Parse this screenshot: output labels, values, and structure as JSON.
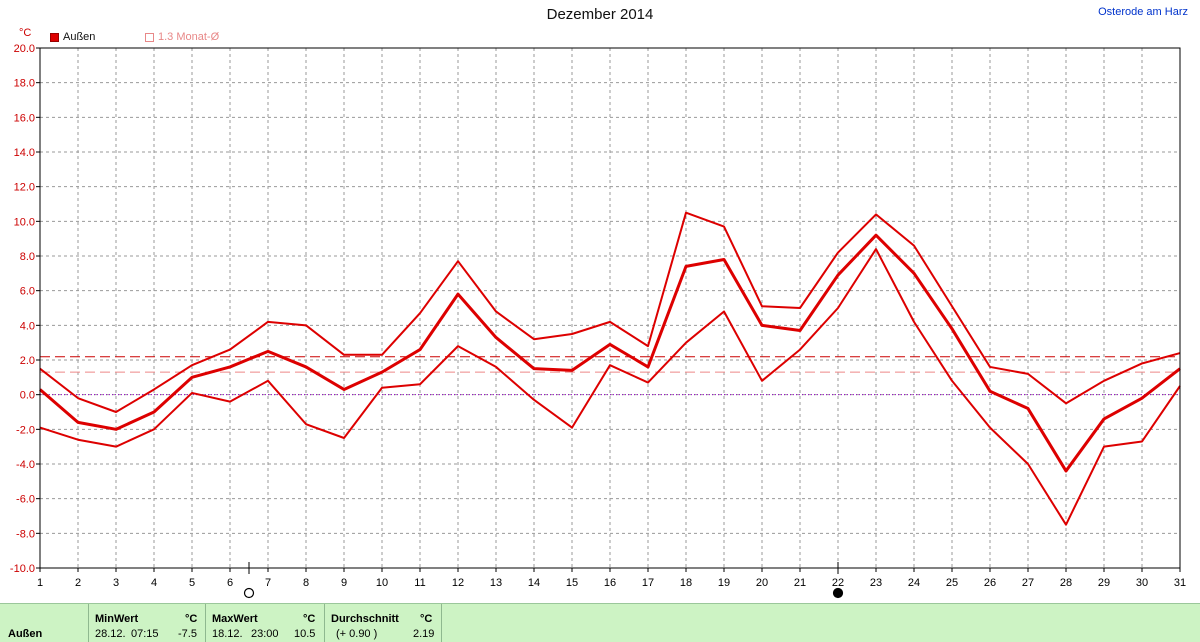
{
  "title": "Dezember 2014",
  "location": "Osterode am Harz",
  "unit": "°C",
  "legend": [
    {
      "label": "Außen",
      "color": "#dd0000"
    },
    {
      "label": "1.3 Monat-Ø",
      "color": "#e88888"
    }
  ],
  "chart_data": {
    "type": "line",
    "x": [
      1,
      2,
      3,
      4,
      5,
      6,
      7,
      8,
      9,
      10,
      11,
      12,
      13,
      14,
      15,
      16,
      17,
      18,
      19,
      20,
      21,
      22,
      23,
      24,
      25,
      26,
      27,
      28,
      29,
      30,
      31
    ],
    "xlim": [
      1,
      31
    ],
    "ylim": [
      -10,
      20
    ],
    "yticks": [
      "-10.0",
      "-8.0",
      "-6.0",
      "-4.0",
      "-2.0",
      "0.0",
      "2.0",
      "4.0",
      "6.0",
      "8.0",
      "10.0",
      "12.0",
      "14.0",
      "16.0",
      "18.0",
      "20.0"
    ],
    "grid": true,
    "series": [
      {
        "name": "Außen",
        "role": "max",
        "color": "#dd0000",
        "values": [
          1.5,
          -0.2,
          -1.0,
          0.3,
          1.7,
          2.6,
          4.2,
          4.0,
          2.3,
          2.3,
          4.7,
          7.7,
          4.8,
          3.2,
          3.5,
          4.2,
          2.8,
          10.5,
          9.7,
          5.1,
          5.0,
          8.2,
          10.4,
          8.6,
          5.1,
          1.6,
          1.2,
          -0.5,
          0.8,
          1.8,
          2.4
        ]
      },
      {
        "role": "mean",
        "color": "#dd0000",
        "values": [
          0.3,
          -1.6,
          -2.0,
          -1.0,
          1.0,
          1.6,
          2.5,
          1.6,
          0.3,
          1.3,
          2.6,
          5.8,
          3.3,
          1.5,
          1.4,
          2.9,
          1.6,
          7.4,
          7.8,
          4.0,
          3.7,
          6.9,
          9.2,
          7.0,
          3.8,
          0.2,
          -0.8,
          -4.4,
          -1.4,
          -0.2,
          1.5
        ]
      },
      {
        "role": "min",
        "color": "#dd0000",
        "values": [
          -1.9,
          -2.6,
          -3.0,
          -2.0,
          0.1,
          -0.4,
          0.8,
          -1.7,
          -2.5,
          0.4,
          0.6,
          2.8,
          1.6,
          -0.3,
          -1.9,
          1.7,
          0.7,
          3.0,
          4.8,
          0.8,
          2.6,
          5.0,
          8.4,
          4.2,
          0.8,
          -1.9,
          -4.0,
          -7.5,
          -3.0,
          -2.7,
          0.5
        ]
      }
    ],
    "reference_lines": [
      {
        "value": 2.19,
        "style": "dashed",
        "color": "#cc0000"
      },
      {
        "value": 1.3,
        "style": "dashed",
        "color": "#ee8888"
      },
      {
        "value": 0.0,
        "style": "dotted",
        "color": "#9900cc"
      }
    ],
    "moon_markers": [
      {
        "day": 6.5,
        "phase": "full"
      },
      {
        "day": 22,
        "phase": "new"
      }
    ]
  },
  "stats": {
    "label": "Außen",
    "min_header": "MinWert",
    "min_date": "28.12.",
    "min_time": "07:15",
    "min_value": "-7.5",
    "max_header": "MaxWert",
    "max_date": "18.12.",
    "max_time": "23:00",
    "max_value": "10.5",
    "avg_header": "Durchschnitt",
    "avg_diff": "(+ 0.90 )",
    "avg_value": "2.19",
    "unit": "°C"
  }
}
